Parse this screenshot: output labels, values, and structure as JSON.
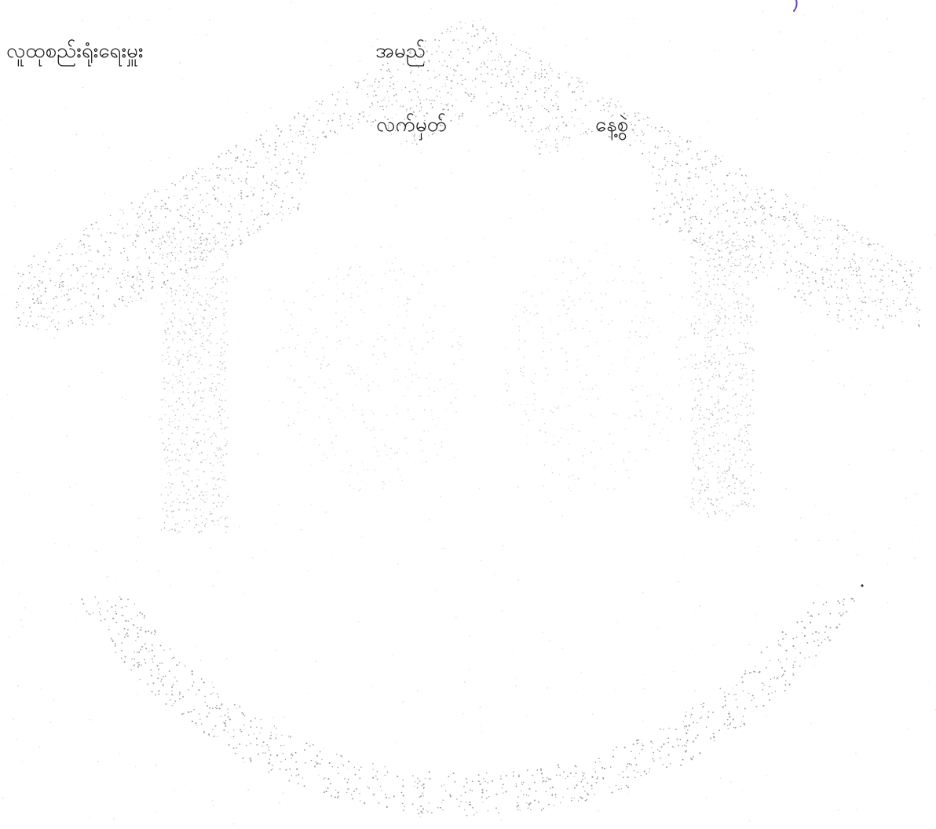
{
  "form": {
    "organization_label": "လူထုစည်းရုံးရေးမှူး",
    "name_label": "အမည်",
    "signature_label": "လက်မှတ်",
    "date_label": "နေ့စွဲ"
  },
  "colors": {
    "text": "#1a1a1a",
    "watermark_dots": "#8a8a8a",
    "pen_ink": "#5b3fd6"
  },
  "icons": {
    "watermark": "stippled-house-people-watermark-icon",
    "pen_mark": "pen-stroke-mark"
  }
}
